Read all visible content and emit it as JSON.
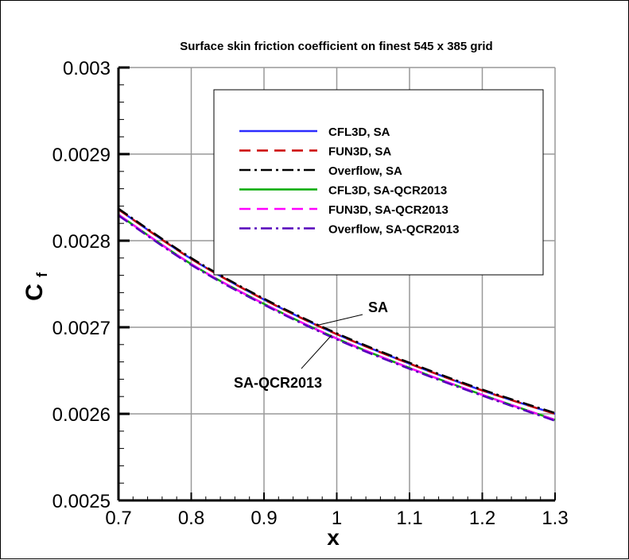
{
  "chart_data": {
    "type": "line",
    "title": "Surface skin friction coefficient on finest 545 x 385 grid",
    "xlabel": "x",
    "ylabel": "C",
    "ylabel_sub": "f",
    "xlim": [
      0.7,
      1.3
    ],
    "ylim": [
      0.0025,
      0.003
    ],
    "xticks": [
      "0.7",
      "0.8",
      "0.9",
      "1",
      "1.1",
      "1.2",
      "1.3"
    ],
    "yticks": [
      "0.0025",
      "0.0026",
      "0.0027",
      "0.0028",
      "0.0029",
      "0.003"
    ],
    "grid": true,
    "legend_placement": "top-right",
    "x": [
      0.7,
      0.8,
      0.9,
      1.0,
      1.1,
      1.2,
      1.3
    ],
    "series": [
      {
        "name": "CFL3D, SA",
        "color": "#2b2bff",
        "dash": "solid",
        "values": [
          0.002836,
          0.002779,
          0.002732,
          0.002692,
          0.002658,
          0.002627,
          0.0026
        ]
      },
      {
        "name": "FUN3D, SA",
        "color": "#cc0000",
        "dash": "dashed",
        "values": [
          0.002836,
          0.002779,
          0.002732,
          0.002692,
          0.002658,
          0.002627,
          0.0026
        ]
      },
      {
        "name": "Overflow, SA",
        "color": "#000000",
        "dash": "dashdot",
        "values": [
          0.002837,
          0.00278,
          0.002733,
          0.002693,
          0.002659,
          0.002628,
          0.002601
        ]
      },
      {
        "name": "CFL3D, SA-QCR2013",
        "color": "#00aa00",
        "dash": "solid",
        "values": [
          0.00283,
          0.002773,
          0.002727,
          0.002687,
          0.002653,
          0.002622,
          0.002593
        ]
      },
      {
        "name": "FUN3D, SA-QCR2013",
        "color": "#ff00ff",
        "dash": "dashed",
        "values": [
          0.00283,
          0.002773,
          0.002727,
          0.002687,
          0.002653,
          0.002622,
          0.002593
        ]
      },
      {
        "name": "Overflow, SA-QCR2013",
        "color": "#5500bb",
        "dash": "dashdot",
        "values": [
          0.002829,
          0.002772,
          0.002726,
          0.002686,
          0.002652,
          0.002621,
          0.002592
        ]
      }
    ],
    "annotations": [
      {
        "text": "SA",
        "x": 0.98,
        "y": 0.002693
      },
      {
        "text": "SA-QCR2013",
        "x": 0.99,
        "y": 0.002687
      }
    ]
  }
}
